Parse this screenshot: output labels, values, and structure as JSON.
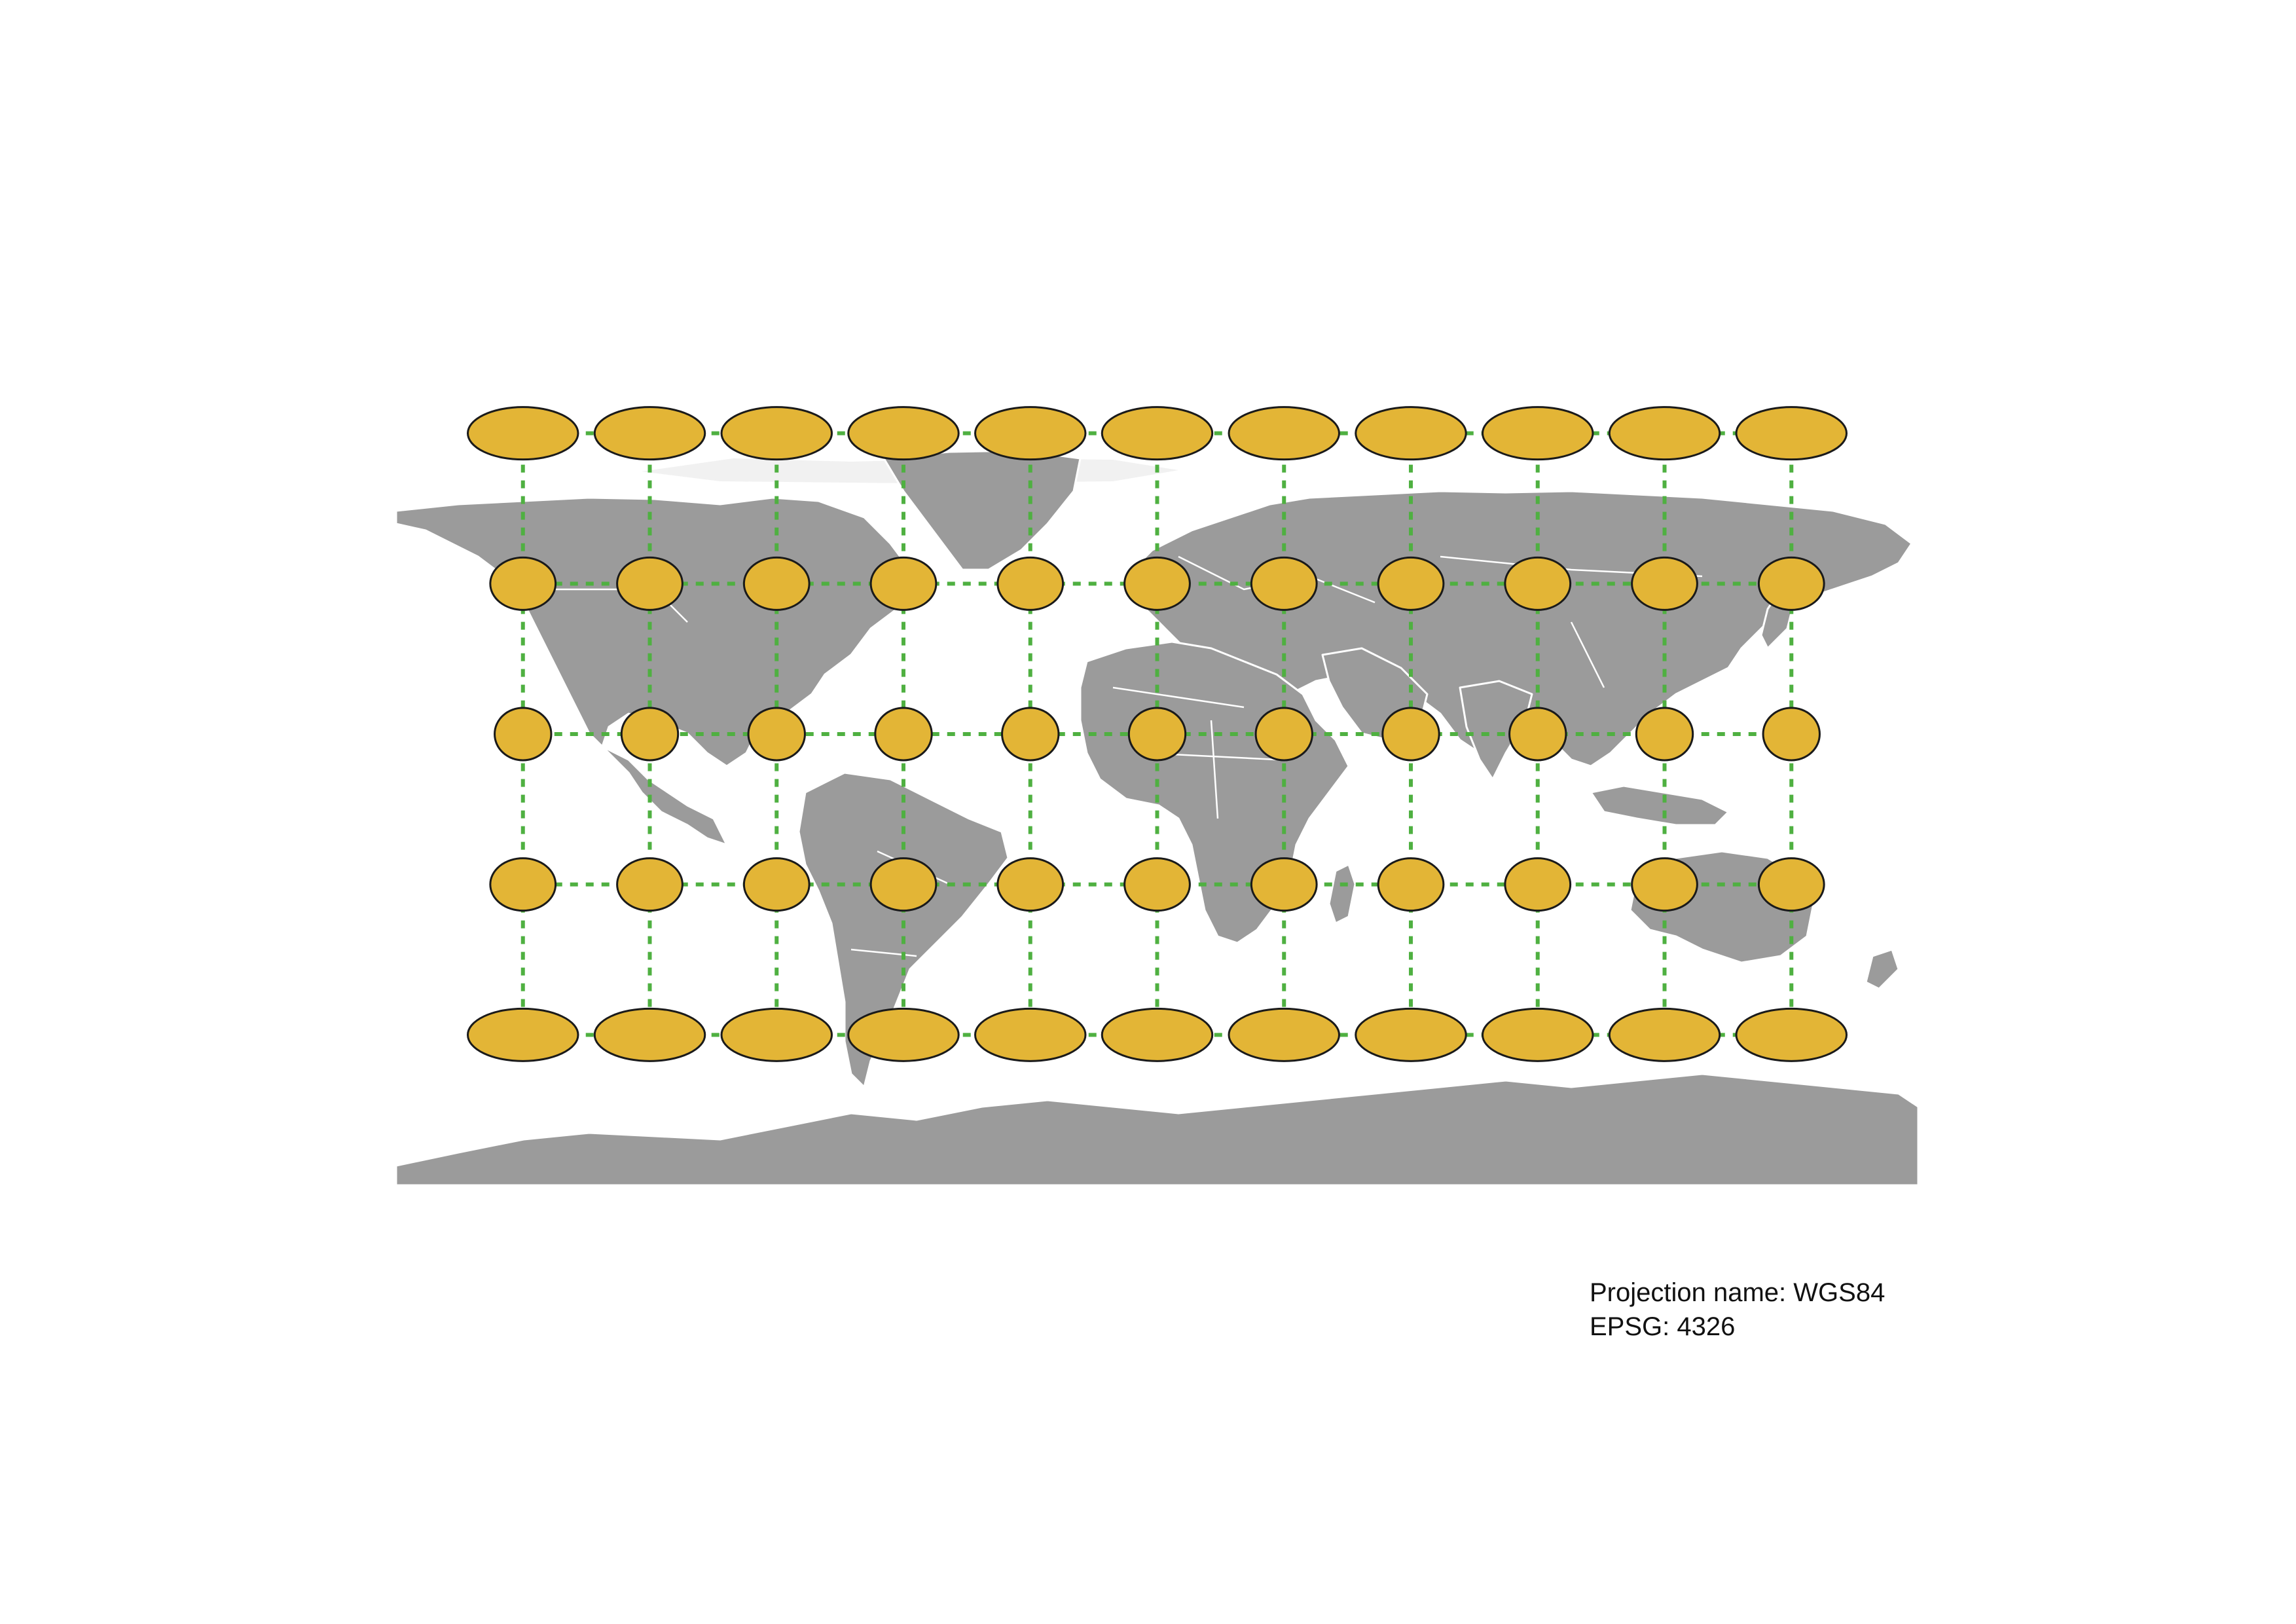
{
  "caption": {
    "projection_line": "Projection name: WGS84",
    "epsg_line": "EPSG: 4326"
  },
  "map": {
    "projection": "WGS84",
    "epsg": 4326,
    "land_color": "#9b9b9b",
    "border_color": "#ffffff",
    "graticule_color": "#4fb041",
    "tissot_fill": "#e3b536",
    "tissot_stroke": "#1a1a1a",
    "graticule_longitudes": [
      -150,
      -120,
      -90,
      -60,
      -30,
      0,
      30,
      60,
      90,
      120,
      150
    ],
    "graticule_latitudes": [
      60,
      30,
      0,
      -30,
      -60
    ]
  }
}
